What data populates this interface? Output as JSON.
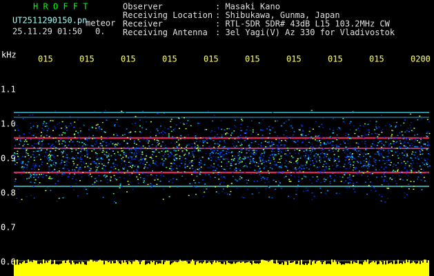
{
  "header": {
    "app": "H R O F F T",
    "file": "UT2511290150.pn",
    "mode": "meteor",
    "datetime": "25.11.29 01:50",
    "extra": "0.",
    "fields": [
      {
        "label": "Observer",
        "value": ": Masaki Kano"
      },
      {
        "label": "Receiving Location",
        "value": ": Shibukawa, Gunma, Japan"
      },
      {
        "label": "Receiver",
        "value": ": RTL-SDR SDR# 43dB L15 103.2MHz CW"
      },
      {
        "label": "Receiving Antenna",
        "value": ": 3el Yagi(V) Az 330 for Vladivostok"
      }
    ]
  },
  "axis": {
    "unit": "kHz",
    "yticks": [
      "1.1",
      "1.0",
      "0.9",
      "0.8",
      "0.7",
      "0.6"
    ],
    "xticks": [
      "015",
      "015",
      "015",
      "015",
      "015",
      "015",
      "015",
      "015",
      "015",
      "0200"
    ]
  }
}
